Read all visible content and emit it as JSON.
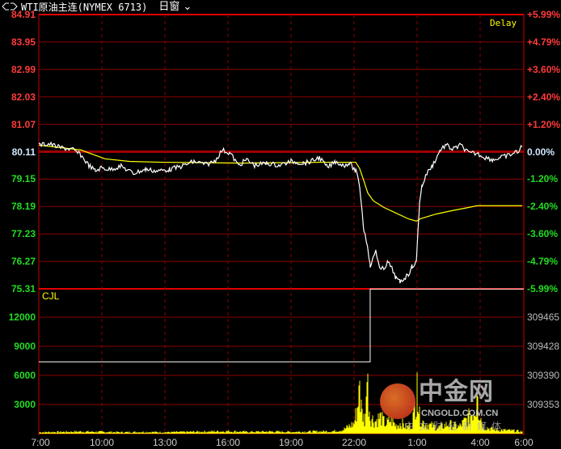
{
  "header": {
    "icon": "link-icon",
    "title": "WTI原油主连(NYMEX 6713)",
    "window_label": "日窗",
    "dropdown_icon": "chevron-down-icon"
  },
  "delay_label": "Delay",
  "volume_indicator_label": "CJL",
  "watermark": {
    "brand": "中金网",
    "domain": "CNGOLD.COM.CN",
    "slogan": "中文财经新媒体"
  },
  "colors": {
    "up": "#ff3b3b",
    "down": "#22dd22",
    "base": "#cfe8ff",
    "price_line": "#ffffff",
    "avg_line": "#ffff00",
    "volume": "#ffff00",
    "grid": "#8b0000",
    "axis": "#cc0000"
  },
  "chart_data": [
    {
      "type": "line",
      "base_price": 80.11,
      "ylim": [
        75.31,
        84.91
      ],
      "price_ticks": [
        "84.91",
        "83.95",
        "82.99",
        "82.03",
        "81.07",
        "80.11",
        "79.15",
        "78.19",
        "77.23",
        "76.27",
        "75.31"
      ],
      "percent_ticks": [
        "+5.99%",
        "+4.79%",
        "+3.60%",
        "+2.40%",
        "+1.20%",
        "0.00%",
        "-1.20%",
        "-2.40%",
        "-3.60%",
        "-4.79%",
        "-5.99%"
      ],
      "x_ticks": [
        "7:00",
        "10:00",
        "13:00",
        "16:00",
        "19:00",
        "22:00",
        "1:00",
        "4:00",
        "6:00"
      ],
      "series": [
        {
          "points": [
            [
              "7:00",
              80.34
            ],
            [
              "7:28",
              80.39
            ],
            [
              "8:02",
              80.25
            ],
            [
              "8:37",
              80.19
            ],
            [
              "9:00",
              79.99
            ],
            [
              "9:23",
              79.63
            ],
            [
              "9:42",
              79.43
            ],
            [
              "9:58",
              79.55
            ],
            [
              "10:21",
              79.49
            ],
            [
              "10:55",
              79.6
            ],
            [
              "11:30",
              79.35
            ],
            [
              "12:05",
              79.49
            ],
            [
              "12:39",
              79.43
            ],
            [
              "13:14",
              79.49
            ],
            [
              "13:48",
              79.6
            ],
            [
              "14:23",
              79.77
            ],
            [
              "14:58",
              79.66
            ],
            [
              "15:21",
              79.77
            ],
            [
              "15:44",
              80.17
            ],
            [
              "16:07",
              80.05
            ],
            [
              "16:30",
              79.63
            ],
            [
              "16:53",
              79.83
            ],
            [
              "17:16",
              79.63
            ],
            [
              "17:51",
              79.71
            ],
            [
              "18:25",
              79.63
            ],
            [
              "19:00",
              79.77
            ],
            [
              "19:35",
              79.71
            ],
            [
              "19:58",
              79.77
            ],
            [
              "20:21",
              79.91
            ],
            [
              "20:44",
              79.55
            ],
            [
              "21:07",
              79.77
            ],
            [
              "21:30",
              79.63
            ],
            [
              "21:46",
              79.71
            ],
            [
              "22:05",
              79.43
            ],
            [
              "22:16",
              78.92
            ],
            [
              "22:28",
              77.37
            ],
            [
              "22:39",
              76.81
            ],
            [
              "22:46",
              76.1
            ],
            [
              "22:55",
              76.38
            ],
            [
              "23:02",
              76.67
            ],
            [
              "23:14",
              75.96
            ],
            [
              "23:25",
              76.04
            ],
            [
              "23:37",
              76.24
            ],
            [
              "23:48",
              76.02
            ],
            [
              "0:00",
              75.68
            ],
            [
              "0:11",
              75.54
            ],
            [
              "0:23",
              75.68
            ],
            [
              "0:35",
              75.82
            ],
            [
              "0:46",
              76.1
            ],
            [
              "0:58",
              76.24
            ],
            [
              "1:02",
              77.23
            ],
            [
              "1:07",
              78.36
            ],
            [
              "1:14",
              78.92
            ],
            [
              "1:28",
              79.35
            ],
            [
              "1:44",
              79.63
            ],
            [
              "2:07",
              80.19
            ],
            [
              "2:23",
              80.34
            ],
            [
              "2:41",
              80.19
            ],
            [
              "3:05",
              80.34
            ],
            [
              "3:28",
              80.05
            ],
            [
              "3:51",
              80.05
            ],
            [
              "4:14",
              79.91
            ],
            [
              "4:37",
              79.83
            ],
            [
              "5:00",
              79.91
            ],
            [
              "5:23",
              79.99
            ],
            [
              "5:46",
              80.11
            ],
            [
              "6:00",
              80.28
            ]
          ]
        },
        {
          "points": [
            [
              "7:00",
              80.34
            ],
            [
              "9:00",
              80.17
            ],
            [
              "10:09",
              79.86
            ],
            [
              "11:18",
              79.77
            ],
            [
              "12:51",
              79.74
            ],
            [
              "16:42",
              79.71
            ],
            [
              "20:32",
              79.74
            ],
            [
              "22:05",
              79.74
            ],
            [
              "22:16",
              79.52
            ],
            [
              "22:28",
              79.09
            ],
            [
              "22:39",
              78.67
            ],
            [
              "22:55",
              78.39
            ],
            [
              "23:25",
              78.16
            ],
            [
              "0:00",
              77.96
            ],
            [
              "0:35",
              77.76
            ],
            [
              "0:58",
              77.68
            ],
            [
              "1:09",
              77.76
            ],
            [
              "1:55",
              77.93
            ],
            [
              "2:41",
              78.05
            ],
            [
              "3:28",
              78.16
            ],
            [
              "3:51",
              78.22
            ],
            [
              "6:00",
              78.22
            ]
          ]
        }
      ]
    },
    {
      "type": "bar",
      "volume_ticks": [
        "12000",
        "9000",
        "6000",
        "3000"
      ],
      "volume_right_ticks": [
        "309465",
        "309428",
        "309390",
        "309353"
      ],
      "ylim": [
        0,
        15000
      ],
      "volume": [
        [
          "7:00",
          200
        ],
        [
          "8:00",
          250
        ],
        [
          "9:00",
          300
        ],
        [
          "10:00",
          250
        ],
        [
          "11:00",
          200
        ],
        [
          "12:00",
          250
        ],
        [
          "13:00",
          200
        ],
        [
          "14:00",
          250
        ],
        [
          "15:00",
          300
        ],
        [
          "16:00",
          350
        ],
        [
          "17:00",
          250
        ],
        [
          "18:00",
          300
        ],
        [
          "19:00",
          250
        ],
        [
          "20:00",
          300
        ],
        [
          "21:00",
          350
        ],
        [
          "21:30",
          600
        ],
        [
          "22:00",
          1500
        ],
        [
          "22:16",
          5500
        ],
        [
          "22:23",
          3000
        ],
        [
          "22:30",
          2000
        ],
        [
          "22:39",
          6300
        ],
        [
          "22:46",
          2500
        ],
        [
          "23:00",
          1800
        ],
        [
          "23:15",
          2500
        ],
        [
          "23:30",
          1400
        ],
        [
          "23:45",
          2000
        ],
        [
          "0:00",
          1200
        ],
        [
          "0:15",
          1600
        ],
        [
          "0:30",
          900
        ],
        [
          "0:45",
          1300
        ],
        [
          "1:00",
          6300
        ],
        [
          "1:07",
          2500
        ],
        [
          "1:20",
          1500
        ],
        [
          "1:40",
          1200
        ],
        [
          "2:00",
          900
        ],
        [
          "2:30",
          1400
        ],
        [
          "3:00",
          1000
        ],
        [
          "3:30",
          2500
        ],
        [
          "3:51",
          4200
        ],
        [
          "4:10",
          1000
        ],
        [
          "4:40",
          600
        ],
        [
          "5:10",
          500
        ],
        [
          "5:40",
          400
        ],
        [
          "6:00",
          300
        ]
      ],
      "cjl": [
        [
          "7:00",
          7400
        ],
        [
          "22:46",
          7400
        ],
        [
          "22:46",
          14900
        ],
        [
          "6:00",
          14900
        ]
      ]
    }
  ]
}
